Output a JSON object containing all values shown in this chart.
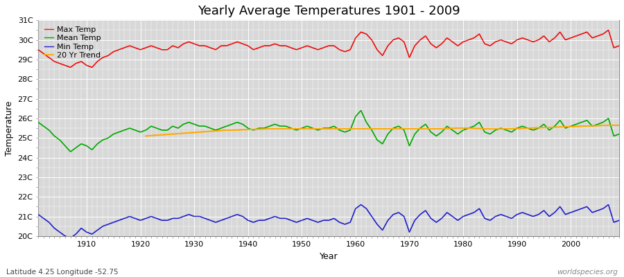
{
  "title": "Yearly Average Temperatures 1901 - 2009",
  "xlabel": "Year",
  "ylabel": "Temperature",
  "footnote_left": "Latitude 4.25 Longitude -52.75",
  "footnote_right": "worldspecies.org",
  "years": [
    1901,
    1902,
    1903,
    1904,
    1905,
    1906,
    1907,
    1908,
    1909,
    1910,
    1911,
    1912,
    1913,
    1914,
    1915,
    1916,
    1917,
    1918,
    1919,
    1920,
    1921,
    1922,
    1923,
    1924,
    1925,
    1926,
    1927,
    1928,
    1929,
    1930,
    1931,
    1932,
    1933,
    1934,
    1935,
    1936,
    1937,
    1938,
    1939,
    1940,
    1941,
    1942,
    1943,
    1944,
    1945,
    1946,
    1947,
    1948,
    1949,
    1950,
    1951,
    1952,
    1953,
    1954,
    1955,
    1956,
    1957,
    1958,
    1959,
    1960,
    1961,
    1962,
    1963,
    1964,
    1965,
    1966,
    1967,
    1968,
    1969,
    1970,
    1971,
    1972,
    1973,
    1974,
    1975,
    1976,
    1977,
    1978,
    1979,
    1980,
    1981,
    1982,
    1983,
    1984,
    1985,
    1986,
    1987,
    1988,
    1989,
    1990,
    1991,
    1992,
    1993,
    1994,
    1995,
    1996,
    1997,
    1998,
    1999,
    2000,
    2001,
    2002,
    2003,
    2004,
    2005,
    2006,
    2007,
    2008,
    2009
  ],
  "max_temp": [
    29.5,
    29.3,
    29.1,
    28.9,
    28.8,
    28.7,
    28.6,
    28.8,
    28.9,
    28.7,
    28.6,
    28.9,
    29.1,
    29.2,
    29.4,
    29.5,
    29.6,
    29.7,
    29.6,
    29.5,
    29.6,
    29.7,
    29.6,
    29.5,
    29.5,
    29.7,
    29.6,
    29.8,
    29.9,
    29.8,
    29.7,
    29.7,
    29.6,
    29.5,
    29.7,
    29.7,
    29.8,
    29.9,
    29.8,
    29.7,
    29.5,
    29.6,
    29.7,
    29.7,
    29.8,
    29.7,
    29.7,
    29.6,
    29.5,
    29.6,
    29.7,
    29.6,
    29.5,
    29.6,
    29.7,
    29.7,
    29.5,
    29.4,
    29.5,
    30.1,
    30.4,
    30.3,
    30.0,
    29.5,
    29.2,
    29.7,
    30.0,
    30.1,
    29.9,
    29.1,
    29.7,
    30.0,
    30.2,
    29.8,
    29.6,
    29.8,
    30.1,
    29.9,
    29.7,
    29.9,
    30.0,
    30.1,
    30.3,
    29.8,
    29.7,
    29.9,
    30.0,
    29.9,
    29.8,
    30.0,
    30.1,
    30.0,
    29.9,
    30.0,
    30.2,
    29.9,
    30.1,
    30.4,
    30.0,
    30.1,
    30.2,
    30.3,
    30.4,
    30.1,
    30.2,
    30.3,
    30.5,
    29.6,
    29.7
  ],
  "mean_temp": [
    25.8,
    25.6,
    25.4,
    25.1,
    24.9,
    24.6,
    24.3,
    24.5,
    24.7,
    24.6,
    24.4,
    24.7,
    24.9,
    25.0,
    25.2,
    25.3,
    25.4,
    25.5,
    25.4,
    25.3,
    25.4,
    25.6,
    25.5,
    25.4,
    25.4,
    25.6,
    25.5,
    25.7,
    25.8,
    25.7,
    25.6,
    25.6,
    25.5,
    25.4,
    25.5,
    25.6,
    25.7,
    25.8,
    25.7,
    25.5,
    25.4,
    25.5,
    25.5,
    25.6,
    25.7,
    25.6,
    25.6,
    25.5,
    25.4,
    25.5,
    25.6,
    25.5,
    25.4,
    25.5,
    25.5,
    25.6,
    25.4,
    25.3,
    25.4,
    26.1,
    26.4,
    25.8,
    25.4,
    24.9,
    24.7,
    25.2,
    25.5,
    25.6,
    25.4,
    24.6,
    25.2,
    25.5,
    25.7,
    25.3,
    25.1,
    25.3,
    25.6,
    25.4,
    25.2,
    25.4,
    25.5,
    25.6,
    25.8,
    25.3,
    25.2,
    25.4,
    25.5,
    25.4,
    25.3,
    25.5,
    25.6,
    25.5,
    25.4,
    25.5,
    25.7,
    25.4,
    25.6,
    25.9,
    25.5,
    25.6,
    25.7,
    25.8,
    25.9,
    25.6,
    25.7,
    25.8,
    26.0,
    25.1,
    25.2
  ],
  "min_temp": [
    21.1,
    20.9,
    20.7,
    20.4,
    20.2,
    20.0,
    19.9,
    20.1,
    20.4,
    20.2,
    20.1,
    20.3,
    20.5,
    20.6,
    20.7,
    20.8,
    20.9,
    21.0,
    20.9,
    20.8,
    20.9,
    21.0,
    20.9,
    20.8,
    20.8,
    20.9,
    20.9,
    21.0,
    21.1,
    21.0,
    21.0,
    20.9,
    20.8,
    20.7,
    20.8,
    20.9,
    21.0,
    21.1,
    21.0,
    20.8,
    20.7,
    20.8,
    20.8,
    20.9,
    21.0,
    20.9,
    20.9,
    20.8,
    20.7,
    20.8,
    20.9,
    20.8,
    20.7,
    20.8,
    20.8,
    20.9,
    20.7,
    20.6,
    20.7,
    21.4,
    21.6,
    21.4,
    21.0,
    20.6,
    20.3,
    20.8,
    21.1,
    21.2,
    21.0,
    20.2,
    20.8,
    21.1,
    21.3,
    20.9,
    20.7,
    20.9,
    21.2,
    21.0,
    20.8,
    21.0,
    21.1,
    21.2,
    21.4,
    20.9,
    20.8,
    21.0,
    21.1,
    21.0,
    20.9,
    21.1,
    21.2,
    21.1,
    21.0,
    21.1,
    21.3,
    21.0,
    21.2,
    21.5,
    21.1,
    21.2,
    21.3,
    21.4,
    21.5,
    21.2,
    21.3,
    21.4,
    21.6,
    20.7,
    20.8
  ],
  "trend_years": [
    1921,
    1922,
    1923,
    1924,
    1925,
    1926,
    1927,
    1928,
    1929,
    1930,
    1931,
    1932,
    1933,
    1934,
    1935,
    1936,
    1937,
    1938,
    1939,
    1940,
    1941,
    1942,
    1943,
    1944,
    1945,
    1946,
    1947,
    1948,
    1949,
    1950,
    1951,
    1952,
    1953,
    1954,
    1955,
    1956,
    1957,
    1958,
    1959,
    1960,
    1961,
    1962,
    1963,
    1964,
    1965,
    1966,
    1967,
    1968,
    1969,
    1970,
    1971,
    1972,
    1973,
    1974,
    1975,
    1976,
    1977,
    1978,
    1979,
    1980,
    1981,
    1982,
    1983,
    1984,
    1985,
    1986,
    1987,
    1988,
    1989,
    1990,
    1991,
    1992,
    1993,
    1994,
    1995,
    1996,
    1997,
    1998,
    1999,
    2000,
    2001,
    2002,
    2003,
    2004,
    2005,
    2006,
    2007,
    2008,
    2009
  ],
  "trend_values": [
    25.1,
    25.12,
    25.14,
    25.16,
    25.18,
    25.2,
    25.22,
    25.24,
    25.26,
    25.28,
    25.3,
    25.32,
    25.34,
    25.36,
    25.38,
    25.4,
    25.4,
    25.41,
    25.42,
    25.43,
    25.44,
    25.45,
    25.46,
    25.47,
    25.47,
    25.47,
    25.47,
    25.47,
    25.47,
    25.47,
    25.47,
    25.47,
    25.47,
    25.47,
    25.47,
    25.47,
    25.47,
    25.47,
    25.47,
    25.47,
    25.47,
    25.47,
    25.47,
    25.47,
    25.47,
    25.47,
    25.47,
    25.47,
    25.47,
    25.47,
    25.47,
    25.47,
    25.47,
    25.47,
    25.47,
    25.47,
    25.48,
    25.49,
    25.5,
    25.5,
    25.5,
    25.49,
    25.48,
    25.47,
    25.46,
    25.46,
    25.46,
    25.47,
    25.47,
    25.48,
    25.49,
    25.5,
    25.51,
    25.52,
    25.53,
    25.54,
    25.55,
    25.56,
    25.57,
    25.58,
    25.59,
    25.6,
    25.61,
    25.62,
    25.63,
    25.64,
    25.65,
    25.65,
    25.65
  ],
  "ylim": [
    20.0,
    31.0
  ],
  "yticks": [
    20,
    21,
    22,
    23,
    24,
    25,
    26,
    27,
    28,
    29,
    30,
    31
  ],
  "ytick_labels": [
    "20C",
    "21C",
    "22C",
    "23C",
    "24C",
    "25C",
    "26C",
    "27C",
    "28C",
    "29C",
    "30C",
    "31C"
  ],
  "xlim_left": 1901,
  "xlim_right": 2009,
  "xticks": [
    1910,
    1920,
    1930,
    1940,
    1950,
    1960,
    1970,
    1980,
    1990,
    2000
  ],
  "color_max": "#ee1111",
  "color_mean": "#00aa00",
  "color_min": "#2222cc",
  "color_trend": "#ffaa00",
  "fig_bg": "#ffffff",
  "plot_bg": "#d8d8d8",
  "grid_color": "#ffffff",
  "title_fontsize": 13,
  "axis_label_fontsize": 9,
  "tick_fontsize": 8,
  "legend_fontsize": 8,
  "line_width": 1.0
}
